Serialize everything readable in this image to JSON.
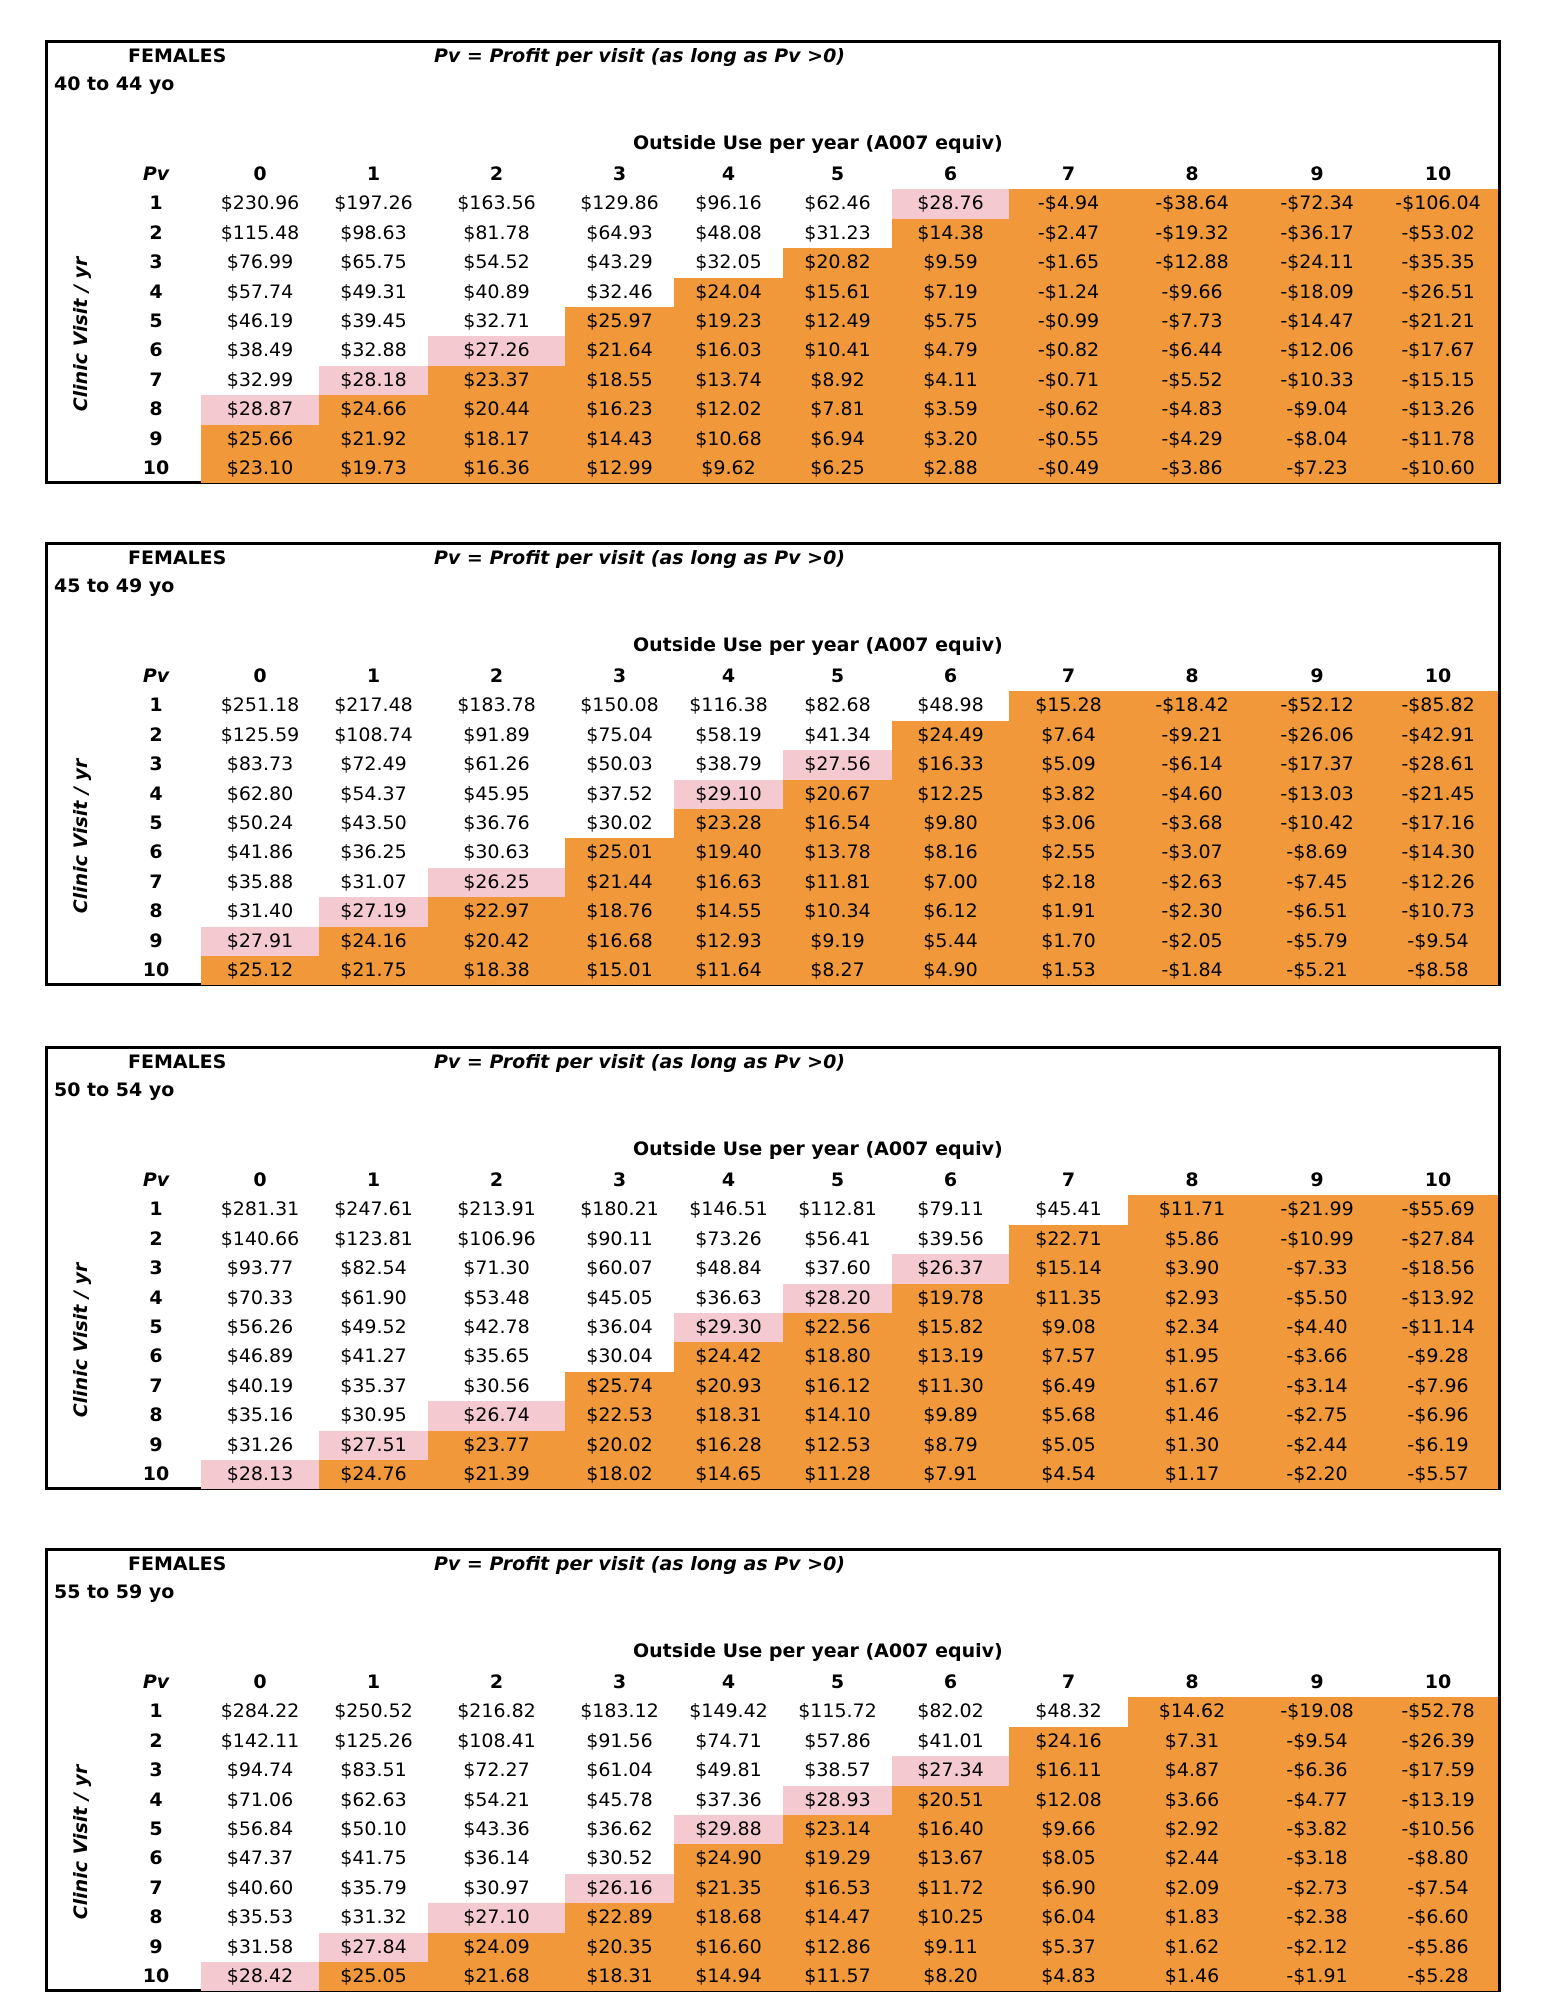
{
  "colors": {
    "white": "#ffffff",
    "pink": "#f5c9d0",
    "orange": "#f0983a"
  },
  "column_headers": [
    "0",
    "1",
    "2",
    "3",
    "4",
    "5",
    "6",
    "7",
    "8",
    "9",
    "10"
  ],
  "tables": [
    {
      "sex": "FEMALES",
      "age": "40 to 44 yo",
      "definition": "Pv = Profit per visit (as long as Pv >0)",
      "column_axis_label": "Outside Use per year (A007 equiv)",
      "row_axis_label": "Clinic Visit / yr",
      "corner_label": "Pv",
      "rows": [
        {
          "label": "1",
          "pink_col": 6,
          "orange_from": 7,
          "values": [
            "$230.96",
            "$197.26",
            "$163.56",
            "$129.86",
            "$96.16",
            "$62.46",
            "$28.76",
            "-$4.94",
            "-$38.64",
            "-$72.34",
            "-$106.04"
          ]
        },
        {
          "label": "2",
          "pink_col": null,
          "orange_from": 6,
          "values": [
            "$115.48",
            "$98.63",
            "$81.78",
            "$64.93",
            "$48.08",
            "$31.23",
            "$14.38",
            "-$2.47",
            "-$19.32",
            "-$36.17",
            "-$53.02"
          ]
        },
        {
          "label": "3",
          "pink_col": null,
          "orange_from": 5,
          "values": [
            "$76.99",
            "$65.75",
            "$54.52",
            "$43.29",
            "$32.05",
            "$20.82",
            "$9.59",
            "-$1.65",
            "-$12.88",
            "-$24.11",
            "-$35.35"
          ]
        },
        {
          "label": "4",
          "pink_col": null,
          "orange_from": 4,
          "values": [
            "$57.74",
            "$49.31",
            "$40.89",
            "$32.46",
            "$24.04",
            "$15.61",
            "$7.19",
            "-$1.24",
            "-$9.66",
            "-$18.09",
            "-$26.51"
          ]
        },
        {
          "label": "5",
          "pink_col": null,
          "orange_from": 3,
          "values": [
            "$46.19",
            "$39.45",
            "$32.71",
            "$25.97",
            "$19.23",
            "$12.49",
            "$5.75",
            "-$0.99",
            "-$7.73",
            "-$14.47",
            "-$21.21"
          ]
        },
        {
          "label": "6",
          "pink_col": 2,
          "orange_from": 3,
          "values": [
            "$38.49",
            "$32.88",
            "$27.26",
            "$21.64",
            "$16.03",
            "$10.41",
            "$4.79",
            "-$0.82",
            "-$6.44",
            "-$12.06",
            "-$17.67"
          ]
        },
        {
          "label": "7",
          "pink_col": 1,
          "orange_from": 2,
          "values": [
            "$32.99",
            "$28.18",
            "$23.37",
            "$18.55",
            "$13.74",
            "$8.92",
            "$4.11",
            "-$0.71",
            "-$5.52",
            "-$10.33",
            "-$15.15"
          ]
        },
        {
          "label": "8",
          "pink_col": 0,
          "orange_from": 1,
          "values": [
            "$28.87",
            "$24.66",
            "$20.44",
            "$16.23",
            "$12.02",
            "$7.81",
            "$3.59",
            "-$0.62",
            "-$4.83",
            "-$9.04",
            "-$13.26"
          ]
        },
        {
          "label": "9",
          "pink_col": null,
          "orange_from": 0,
          "values": [
            "$25.66",
            "$21.92",
            "$18.17",
            "$14.43",
            "$10.68",
            "$6.94",
            "$3.20",
            "-$0.55",
            "-$4.29",
            "-$8.04",
            "-$11.78"
          ]
        },
        {
          "label": "10",
          "pink_col": null,
          "orange_from": 0,
          "values": [
            "$23.10",
            "$19.73",
            "$16.36",
            "$12.99",
            "$9.62",
            "$6.25",
            "$2.88",
            "-$0.49",
            "-$3.86",
            "-$7.23",
            "-$10.60"
          ]
        }
      ]
    },
    {
      "sex": "FEMALES",
      "age": "45 to 49 yo",
      "definition": "Pv = Profit per visit (as long as Pv >0)",
      "column_axis_label": "Outside Use per year (A007 equiv)",
      "row_axis_label": "Clinic Visit / yr",
      "corner_label": "Pv",
      "rows": [
        {
          "label": "1",
          "pink_col": null,
          "orange_from": 7,
          "values": [
            "$251.18",
            "$217.48",
            "$183.78",
            "$150.08",
            "$116.38",
            "$82.68",
            "$48.98",
            "$15.28",
            "-$18.42",
            "-$52.12",
            "-$85.82"
          ]
        },
        {
          "label": "2",
          "pink_col": null,
          "orange_from": 6,
          "values": [
            "$125.59",
            "$108.74",
            "$91.89",
            "$75.04",
            "$58.19",
            "$41.34",
            "$24.49",
            "$7.64",
            "-$9.21",
            "-$26.06",
            "-$42.91"
          ]
        },
        {
          "label": "3",
          "pink_col": 5,
          "orange_from": 6,
          "values": [
            "$83.73",
            "$72.49",
            "$61.26",
            "$50.03",
            "$38.79",
            "$27.56",
            "$16.33",
            "$5.09",
            "-$6.14",
            "-$17.37",
            "-$28.61"
          ]
        },
        {
          "label": "4",
          "pink_col": 4,
          "orange_from": 5,
          "values": [
            "$62.80",
            "$54.37",
            "$45.95",
            "$37.52",
            "$29.10",
            "$20.67",
            "$12.25",
            "$3.82",
            "-$4.60",
            "-$13.03",
            "-$21.45"
          ]
        },
        {
          "label": "5",
          "pink_col": null,
          "orange_from": 4,
          "values": [
            "$50.24",
            "$43.50",
            "$36.76",
            "$30.02",
            "$23.28",
            "$16.54",
            "$9.80",
            "$3.06",
            "-$3.68",
            "-$10.42",
            "-$17.16"
          ]
        },
        {
          "label": "6",
          "pink_col": null,
          "orange_from": 3,
          "values": [
            "$41.86",
            "$36.25",
            "$30.63",
            "$25.01",
            "$19.40",
            "$13.78",
            "$8.16",
            "$2.55",
            "-$3.07",
            "-$8.69",
            "-$14.30"
          ]
        },
        {
          "label": "7",
          "pink_col": 2,
          "orange_from": 3,
          "values": [
            "$35.88",
            "$31.07",
            "$26.25",
            "$21.44",
            "$16.63",
            "$11.81",
            "$7.00",
            "$2.18",
            "-$2.63",
            "-$7.45",
            "-$12.26"
          ]
        },
        {
          "label": "8",
          "pink_col": 1,
          "orange_from": 2,
          "values": [
            "$31.40",
            "$27.19",
            "$22.97",
            "$18.76",
            "$14.55",
            "$10.34",
            "$6.12",
            "$1.91",
            "-$2.30",
            "-$6.51",
            "-$10.73"
          ]
        },
        {
          "label": "9",
          "pink_col": 0,
          "orange_from": 1,
          "values": [
            "$27.91",
            "$24.16",
            "$20.42",
            "$16.68",
            "$12.93",
            "$9.19",
            "$5.44",
            "$1.70",
            "-$2.05",
            "-$5.79",
            "-$9.54"
          ]
        },
        {
          "label": "10",
          "pink_col": null,
          "orange_from": 0,
          "values": [
            "$25.12",
            "$21.75",
            "$18.38",
            "$15.01",
            "$11.64",
            "$8.27",
            "$4.90",
            "$1.53",
            "-$1.84",
            "-$5.21",
            "-$8.58"
          ]
        }
      ]
    },
    {
      "sex": "FEMALES",
      "age": "50 to 54 yo",
      "definition": "Pv = Profit per visit (as long as Pv >0)",
      "column_axis_label": "Outside Use per year (A007 equiv)",
      "row_axis_label": "Clinic Visit / yr",
      "corner_label": "Pv",
      "rows": [
        {
          "label": "1",
          "pink_col": null,
          "orange_from": 8,
          "values": [
            "$281.31",
            "$247.61",
            "$213.91",
            "$180.21",
            "$146.51",
            "$112.81",
            "$79.11",
            "$45.41",
            "$11.71",
            "-$21.99",
            "-$55.69"
          ]
        },
        {
          "label": "2",
          "pink_col": null,
          "orange_from": 7,
          "values": [
            "$140.66",
            "$123.81",
            "$106.96",
            "$90.11",
            "$73.26",
            "$56.41",
            "$39.56",
            "$22.71",
            "$5.86",
            "-$10.99",
            "-$27.84"
          ]
        },
        {
          "label": "3",
          "pink_col": 6,
          "orange_from": 7,
          "values": [
            "$93.77",
            "$82.54",
            "$71.30",
            "$60.07",
            "$48.84",
            "$37.60",
            "$26.37",
            "$15.14",
            "$3.90",
            "-$7.33",
            "-$18.56"
          ]
        },
        {
          "label": "4",
          "pink_col": 5,
          "orange_from": 6,
          "values": [
            "$70.33",
            "$61.90",
            "$53.48",
            "$45.05",
            "$36.63",
            "$28.20",
            "$19.78",
            "$11.35",
            "$2.93",
            "-$5.50",
            "-$13.92"
          ]
        },
        {
          "label": "5",
          "pink_col": 4,
          "orange_from": 5,
          "values": [
            "$56.26",
            "$49.52",
            "$42.78",
            "$36.04",
            "$29.30",
            "$22.56",
            "$15.82",
            "$9.08",
            "$2.34",
            "-$4.40",
            "-$11.14"
          ]
        },
        {
          "label": "6",
          "pink_col": null,
          "orange_from": 4,
          "values": [
            "$46.89",
            "$41.27",
            "$35.65",
            "$30.04",
            "$24.42",
            "$18.80",
            "$13.19",
            "$7.57",
            "$1.95",
            "-$3.66",
            "-$9.28"
          ]
        },
        {
          "label": "7",
          "pink_col": null,
          "orange_from": 3,
          "values": [
            "$40.19",
            "$35.37",
            "$30.56",
            "$25.74",
            "$20.93",
            "$16.12",
            "$11.30",
            "$6.49",
            "$1.67",
            "-$3.14",
            "-$7.96"
          ]
        },
        {
          "label": "8",
          "pink_col": 2,
          "orange_from": 3,
          "values": [
            "$35.16",
            "$30.95",
            "$26.74",
            "$22.53",
            "$18.31",
            "$14.10",
            "$9.89",
            "$5.68",
            "$1.46",
            "-$2.75",
            "-$6.96"
          ]
        },
        {
          "label": "9",
          "pink_col": 1,
          "orange_from": 2,
          "values": [
            "$31.26",
            "$27.51",
            "$23.77",
            "$20.02",
            "$16.28",
            "$12.53",
            "$8.79",
            "$5.05",
            "$1.30",
            "-$2.44",
            "-$6.19"
          ]
        },
        {
          "label": "10",
          "pink_col": 0,
          "orange_from": 1,
          "values": [
            "$28.13",
            "$24.76",
            "$21.39",
            "$18.02",
            "$14.65",
            "$11.28",
            "$7.91",
            "$4.54",
            "$1.17",
            "-$2.20",
            "-$5.57"
          ]
        }
      ]
    },
    {
      "sex": "FEMALES",
      "age": "55 to 59 yo",
      "definition": "Pv = Profit per visit (as long as Pv >0)",
      "column_axis_label": "Outside Use per year (A007 equiv)",
      "row_axis_label": "Clinic Visit / yr",
      "corner_label": "Pv",
      "rows": [
        {
          "label": "1",
          "pink_col": null,
          "orange_from": 8,
          "values": [
            "$284.22",
            "$250.52",
            "$216.82",
            "$183.12",
            "$149.42",
            "$115.72",
            "$82.02",
            "$48.32",
            "$14.62",
            "-$19.08",
            "-$52.78"
          ]
        },
        {
          "label": "2",
          "pink_col": null,
          "orange_from": 7,
          "values": [
            "$142.11",
            "$125.26",
            "$108.41",
            "$91.56",
            "$74.71",
            "$57.86",
            "$41.01",
            "$24.16",
            "$7.31",
            "-$9.54",
            "-$26.39"
          ]
        },
        {
          "label": "3",
          "pink_col": 6,
          "orange_from": 7,
          "values": [
            "$94.74",
            "$83.51",
            "$72.27",
            "$61.04",
            "$49.81",
            "$38.57",
            "$27.34",
            "$16.11",
            "$4.87",
            "-$6.36",
            "-$17.59"
          ]
        },
        {
          "label": "4",
          "pink_col": 5,
          "orange_from": 6,
          "values": [
            "$71.06",
            "$62.63",
            "$54.21",
            "$45.78",
            "$37.36",
            "$28.93",
            "$20.51",
            "$12.08",
            "$3.66",
            "-$4.77",
            "-$13.19"
          ]
        },
        {
          "label": "5",
          "pink_col": 4,
          "orange_from": 5,
          "values": [
            "$56.84",
            "$50.10",
            "$43.36",
            "$36.62",
            "$29.88",
            "$23.14",
            "$16.40",
            "$9.66",
            "$2.92",
            "-$3.82",
            "-$10.56"
          ]
        },
        {
          "label": "6",
          "pink_col": null,
          "orange_from": 4,
          "values": [
            "$47.37",
            "$41.75",
            "$36.14",
            "$30.52",
            "$24.90",
            "$19.29",
            "$13.67",
            "$8.05",
            "$2.44",
            "-$3.18",
            "-$8.80"
          ]
        },
        {
          "label": "7",
          "pink_col": 3,
          "orange_from": 4,
          "values": [
            "$40.60",
            "$35.79",
            "$30.97",
            "$26.16",
            "$21.35",
            "$16.53",
            "$11.72",
            "$6.90",
            "$2.09",
            "-$2.73",
            "-$7.54"
          ]
        },
        {
          "label": "8",
          "pink_col": 2,
          "orange_from": 3,
          "values": [
            "$35.53",
            "$31.32",
            "$27.10",
            "$22.89",
            "$18.68",
            "$14.47",
            "$10.25",
            "$6.04",
            "$1.83",
            "-$2.38",
            "-$6.60"
          ]
        },
        {
          "label": "9",
          "pink_col": 1,
          "orange_from": 2,
          "values": [
            "$31.58",
            "$27.84",
            "$24.09",
            "$20.35",
            "$16.60",
            "$12.86",
            "$9.11",
            "$5.37",
            "$1.62",
            "-$2.12",
            "-$5.86"
          ]
        },
        {
          "label": "10",
          "pink_col": 0,
          "orange_from": 1,
          "values": [
            "$28.42",
            "$25.05",
            "$21.68",
            "$18.31",
            "$14.94",
            "$11.57",
            "$8.20",
            "$4.83",
            "$1.46",
            "-$1.91",
            "-$5.28"
          ]
        }
      ]
    }
  ]
}
